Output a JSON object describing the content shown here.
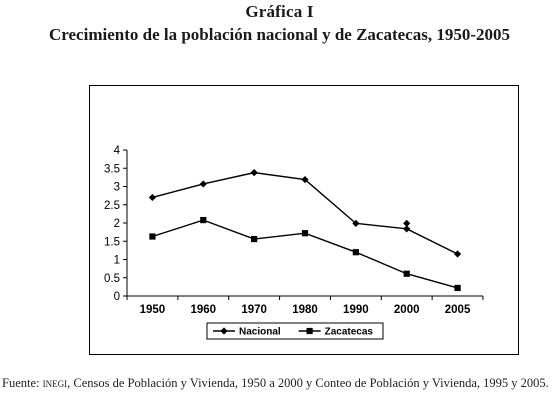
{
  "figure": {
    "label": "Gráfica I",
    "title": "Crecimiento de la población nacional y de Zacatecas, 1950-2005"
  },
  "source": {
    "prefix": "Fuente: ",
    "org": "inegi",
    "rest": ", Censos de Población y Vivienda, 1950 a 2000 y Conteo de Población y Vivienda, 1995 y 2005."
  },
  "chart_data": {
    "type": "line",
    "title": "",
    "xlabel": "",
    "ylabel": "",
    "categories": [
      "1950",
      "1960",
      "1970",
      "1980",
      "1990",
      "2000",
      "2005"
    ],
    "ylim": [
      0,
      4
    ],
    "yticks": [
      "0",
      "0.5",
      "1",
      "1.5",
      "2",
      "2.5",
      "3",
      "3.5",
      "4"
    ],
    "grid": false,
    "legend_position": "bottom",
    "series": [
      {
        "name": "Nacional",
        "marker": "diamond",
        "color": "#000000",
        "values": [
          2.7,
          3.07,
          3.38,
          3.19,
          1.99,
          1.84,
          1.15
        ],
        "extra_points": [
          {
            "x": "2000",
            "y": 1.99
          }
        ]
      },
      {
        "name": "Zacatecas",
        "marker": "square",
        "color": "#000000",
        "values": [
          1.63,
          2.08,
          1.56,
          1.72,
          1.2,
          0.61,
          0.22
        ]
      }
    ]
  }
}
